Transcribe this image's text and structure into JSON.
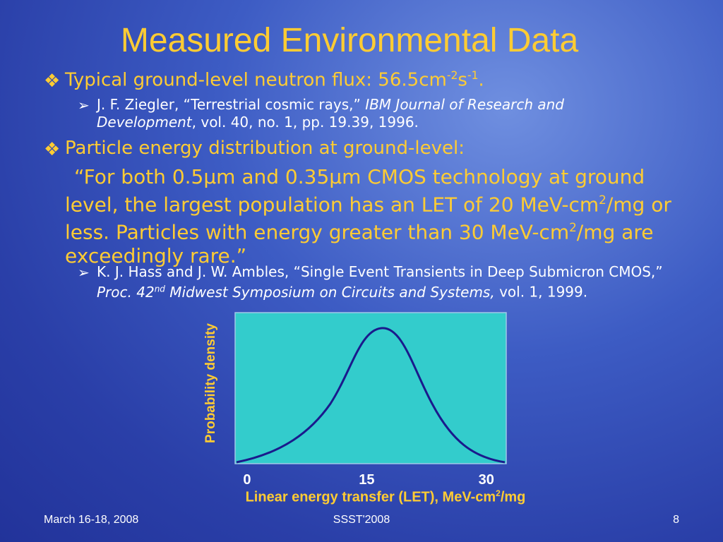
{
  "title": "Measured Environmental Data",
  "bullet1": {
    "parts": [
      "Typical ground-level neutron flux: 56.5cm",
      "-2",
      "s",
      "-1",
      "."
    ],
    "ref": {
      "authors": "J. F. Ziegler, “Terrestrial cosmic rays,”",
      "journal": "IBM Journal of Research and Development",
      "rest": ", vol. 40, no. 1, pp. 19.39, 1996."
    }
  },
  "bullet2": {
    "text": "Particle energy distribution at ground-level:",
    "quote": [
      "“For both 0.5μm and  0.35μm CMOS technology at ground level, the largest population has an LET of 20 MeV-cm",
      "2",
      "/mg or less. Particles with energy greater than 30 MeV-cm",
      "2",
      "/mg are exceedingly rare.”"
    ],
    "ref": {
      "authors": "K. J. Hass and J. W. Ambles, “Single Event Transients in Deep Submicron CMOS,”",
      "proc": "Proc. 42",
      "sup": "nd",
      "proc_rest": " Midwest Symposium on Circuits and Systems,",
      "rest": " vol. 1, 1999."
    }
  },
  "chart_data": {
    "type": "line",
    "y_label": "Probability density",
    "x_label": [
      "Linear energy transfer (LET), MeV-cm",
      "2",
      "/mg"
    ],
    "xlim": [
      -1.5,
      32.5
    ],
    "xticks": [
      0,
      15,
      30
    ]
  },
  "footer": {
    "date": "March 16-18, 2008",
    "event": "SSST'2008",
    "page": "8"
  }
}
